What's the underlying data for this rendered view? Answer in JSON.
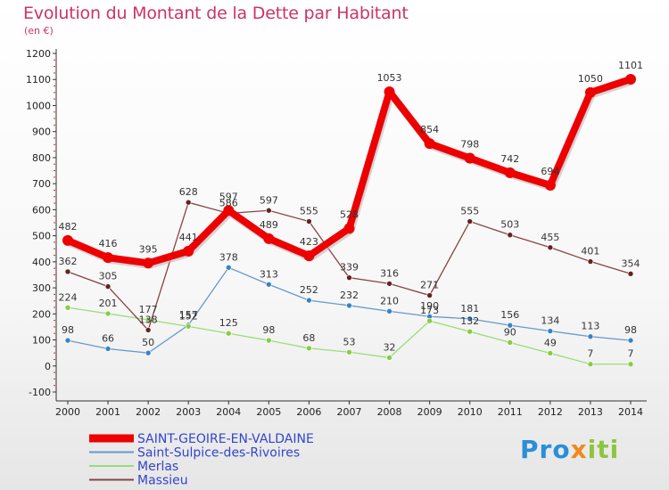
{
  "title": "Evolution du Montant de la Dette par Habitant",
  "subtitle": "(en €)",
  "logo": {
    "text": "Proxiti"
  },
  "chart_data": {
    "type": "line",
    "title": "Evolution du Montant de la Dette par Habitant",
    "subtitle": "(en €)",
    "xlabel": "",
    "ylabel": "",
    "ylim": [
      -100,
      1200
    ],
    "ytick_step": 100,
    "grid": false,
    "legend_position": "bottom-left",
    "x": [
      "2000",
      "2001",
      "2002",
      "2003",
      "2004",
      "2005",
      "2006",
      "2007",
      "2008",
      "2009",
      "2010",
      "2011",
      "2012",
      "2013",
      "2014"
    ],
    "series": [
      {
        "name": "SAINT-GEOIRE-EN-VALDAINE",
        "color": "#ee0000",
        "marker": "#ee0000",
        "emphasis": true,
        "values": [
          482,
          416,
          395,
          441,
          597,
          489,
          423,
          528,
          1053,
          854,
          798,
          742,
          694,
          1050,
          1101
        ],
        "labels": [
          "482",
          "416",
          "395",
          "441",
          "597",
          "489",
          "423",
          "528",
          "1053",
          "854",
          "798",
          "742",
          "694",
          "1050",
          "1101"
        ]
      },
      {
        "name": "Saint-Sulpice-des-Rivoires",
        "color": "#6699cc",
        "marker": "#3b82c4",
        "values": [
          98,
          66,
          50,
          157,
          378,
          313,
          252,
          232,
          210,
          190,
          181,
          156,
          134,
          113,
          98
        ],
        "labels": [
          "98",
          "66",
          "50",
          "157",
          "378",
          "313",
          "252",
          "232",
          "210",
          "190",
          "181",
          "156",
          "134",
          "113",
          "98"
        ]
      },
      {
        "name": "Merlas",
        "color": "#99dd77",
        "marker": "#88cc44",
        "values": [
          224,
          201,
          177,
          152,
          125,
          98,
          68,
          53,
          32,
          173,
          132,
          90,
          49,
          7,
          7
        ],
        "labels": [
          "224",
          "201",
          "177",
          "152",
          "125",
          "98",
          "68",
          "53",
          "32",
          "173",
          "132",
          "90",
          "49",
          "7",
          "7"
        ]
      },
      {
        "name": "Massieu",
        "color": "#884444",
        "marker": "#662222",
        "values": [
          362,
          305,
          138,
          628,
          586,
          597,
          555,
          339,
          316,
          271,
          555,
          503,
          455,
          401,
          354
        ],
        "labels": [
          "362",
          "305",
          "138",
          "628",
          "586",
          "597",
          "555",
          "339",
          "316",
          "271",
          "555",
          "503",
          "455",
          "401",
          "354"
        ]
      }
    ]
  }
}
